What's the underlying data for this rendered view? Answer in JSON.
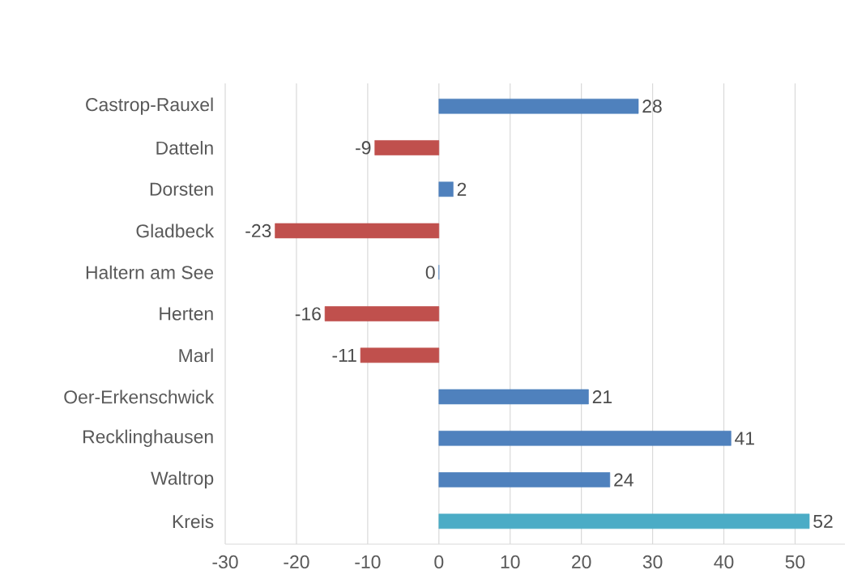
{
  "chart_data": {
    "type": "bar",
    "orientation": "horizontal",
    "categories": [
      "Castrop-Rauxel",
      "Datteln",
      "Dorsten",
      "Gladbeck",
      "Haltern am See",
      "Herten",
      "Marl",
      "Oer-Erkenschwick",
      "Recklinghausen",
      "Waltrop",
      "Kreis"
    ],
    "values": [
      28,
      -9,
      2,
      -23,
      0,
      -16,
      -11,
      21,
      41,
      24,
      52
    ],
    "colors": [
      "#4f81bd",
      "#c0504d",
      "#4f81bd",
      "#c0504d",
      "#4f81bd",
      "#c0504d",
      "#c0504d",
      "#4f81bd",
      "#4f81bd",
      "#4f81bd",
      "#4bacc6"
    ],
    "xlim": [
      -30,
      57
    ],
    "xticks": [
      -30,
      -20,
      -10,
      0,
      10,
      20,
      30,
      40,
      50
    ],
    "grid": "x",
    "data_labels": true
  }
}
